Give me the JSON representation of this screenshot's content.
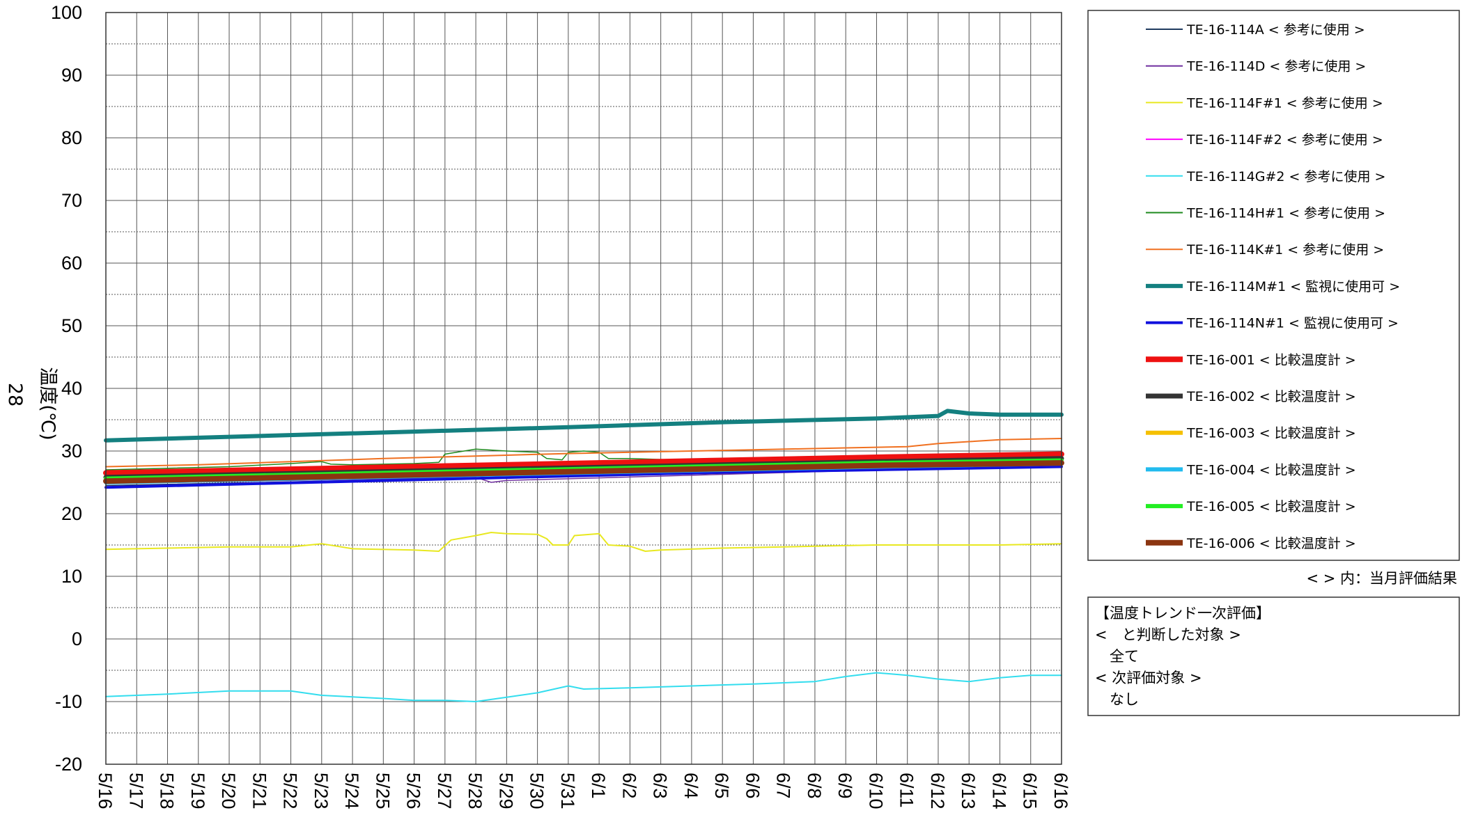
{
  "chart_data": {
    "type": "line",
    "ylabel": "温度(℃)",
    "yticks": [
      100,
      90,
      80,
      70,
      60,
      50,
      40,
      30,
      20,
      10,
      0,
      -10,
      -20
    ],
    "ylim": [
      -20,
      100
    ],
    "xticks": [
      "5/16",
      "5/17",
      "5/18",
      "5/19",
      "5/20",
      "5/21",
      "5/22",
      "5/23",
      "5/24",
      "5/25",
      "5/26",
      "5/27",
      "5/28",
      "5/29",
      "5/30",
      "5/31",
      "6/1",
      "6/2",
      "6/3",
      "6/4",
      "6/5",
      "6/6",
      "6/7",
      "6/8",
      "6/9",
      "6/10",
      "6/11",
      "6/12",
      "6/13",
      "6/14",
      "6/15",
      "6/16"
    ],
    "grid": true,
    "legend_position": "right",
    "series": [
      {
        "name": "TE-16-114A < 参考に使用 >",
        "color": "#1f3a5f",
        "width": 1.5,
        "values": [
          [
            0,
            24.5
          ],
          [
            31,
            27.5
          ]
        ]
      },
      {
        "name": "TE-16-114D < 参考に使用 >",
        "color": "#7030a0",
        "width": 1.5,
        "values": [
          [
            0,
            24.8
          ],
          [
            12,
            25.8
          ],
          [
            12.5,
            25.0
          ],
          [
            13,
            25.3
          ],
          [
            31,
            27.8
          ]
        ]
      },
      {
        "name": "TE-16-114F#1 < 参考に使用 >",
        "color": "#e8e820",
        "width": 2,
        "values": [
          [
            0,
            14.3
          ],
          [
            2,
            14.5
          ],
          [
            4,
            14.7
          ],
          [
            6,
            14.7
          ],
          [
            7,
            15.2
          ],
          [
            8,
            14.4
          ],
          [
            10,
            14.2
          ],
          [
            10.8,
            14.0
          ],
          [
            11.2,
            15.8
          ],
          [
            12,
            16.5
          ],
          [
            12.5,
            17.0
          ],
          [
            13,
            16.8
          ],
          [
            14,
            16.7
          ],
          [
            14.3,
            16.0
          ],
          [
            14.5,
            15.0
          ],
          [
            15,
            15.0
          ],
          [
            15.2,
            16.5
          ],
          [
            16,
            16.8
          ],
          [
            16.3,
            15.0
          ],
          [
            17,
            14.8
          ],
          [
            17.5,
            14.0
          ],
          [
            18,
            14.2
          ],
          [
            20,
            14.5
          ],
          [
            23,
            14.8
          ],
          [
            25,
            15.0
          ],
          [
            27,
            15.0
          ],
          [
            29,
            15.0
          ],
          [
            31,
            15.2
          ]
        ]
      },
      {
        "name": "TE-16-114F#2 < 参考に使用 >",
        "color": "#ff00ff",
        "width": 1.5,
        "values": [
          [
            0,
            25.5
          ],
          [
            31,
            28.5
          ]
        ]
      },
      {
        "name": "TE-16-114G#2 < 参考に使用 >",
        "color": "#33ddee",
        "width": 2,
        "values": [
          [
            0,
            -9.2
          ],
          [
            2,
            -8.8
          ],
          [
            4,
            -8.3
          ],
          [
            6,
            -8.3
          ],
          [
            7,
            -9.0
          ],
          [
            9,
            -9.5
          ],
          [
            10,
            -9.8
          ],
          [
            11,
            -9.8
          ],
          [
            12,
            -10.0
          ],
          [
            13,
            -9.3
          ],
          [
            14,
            -8.6
          ],
          [
            15,
            -7.5
          ],
          [
            15.5,
            -8.0
          ],
          [
            17,
            -7.8
          ],
          [
            19,
            -7.5
          ],
          [
            21,
            -7.2
          ],
          [
            23,
            -6.8
          ],
          [
            24,
            -6.0
          ],
          [
            25,
            -5.4
          ],
          [
            26,
            -5.8
          ],
          [
            27,
            -6.4
          ],
          [
            28,
            -6.8
          ],
          [
            29,
            -6.2
          ],
          [
            30,
            -5.8
          ],
          [
            31,
            -5.8
          ]
        ]
      },
      {
        "name": "TE-16-114H#1 < 参考に使用 >",
        "color": "#1e8a1e",
        "width": 1.5,
        "values": [
          [
            0,
            27.0
          ],
          [
            4,
            27.5
          ],
          [
            6,
            28.0
          ],
          [
            7,
            28.3
          ],
          [
            7.3,
            27.9
          ],
          [
            8,
            27.8
          ],
          [
            10,
            28.0
          ],
          [
            10.8,
            28.2
          ],
          [
            11,
            29.5
          ],
          [
            12,
            30.3
          ],
          [
            13,
            30.0
          ],
          [
            14,
            29.8
          ],
          [
            14.3,
            28.8
          ],
          [
            14.8,
            28.6
          ],
          [
            15,
            29.8
          ],
          [
            15.5,
            30.0
          ],
          [
            16,
            29.8
          ],
          [
            16.3,
            28.8
          ],
          [
            17,
            28.8
          ],
          [
            19,
            28.5
          ],
          [
            21,
            28.6
          ],
          [
            23,
            28.7
          ],
          [
            25,
            28.8
          ],
          [
            27,
            29.0
          ],
          [
            29,
            29.0
          ],
          [
            31,
            29.3
          ]
        ]
      },
      {
        "name": "TE-16-114K#1 < 参考に使用 >",
        "color": "#f07020",
        "width": 2,
        "values": [
          [
            0,
            27.5
          ],
          [
            3,
            27.8
          ],
          [
            6,
            28.3
          ],
          [
            9,
            28.8
          ],
          [
            12,
            29.2
          ],
          [
            15,
            29.6
          ],
          [
            18,
            29.9
          ],
          [
            21,
            30.2
          ],
          [
            24,
            30.5
          ],
          [
            26,
            30.7
          ],
          [
            27,
            31.2
          ],
          [
            28,
            31.5
          ],
          [
            29,
            31.8
          ],
          [
            31,
            32.0
          ]
        ]
      },
      {
        "name": "TE-16-114M#1 < 監視に使用可 >",
        "color": "#148080",
        "width": 6,
        "values": [
          [
            0,
            31.7
          ],
          [
            5,
            32.4
          ],
          [
            10,
            33.1
          ],
          [
            15,
            33.8
          ],
          [
            20,
            34.6
          ],
          [
            25,
            35.2
          ],
          [
            27,
            35.6
          ],
          [
            27.3,
            36.4
          ],
          [
            28,
            36.0
          ],
          [
            29,
            35.8
          ],
          [
            31,
            35.8
          ]
        ]
      },
      {
        "name": "TE-16-114N#1 < 監視に使用可 >",
        "color": "#1010dd",
        "width": 4,
        "values": [
          [
            0,
            24.2
          ],
          [
            5,
            24.8
          ],
          [
            10,
            25.4
          ],
          [
            15,
            26.0
          ],
          [
            20,
            26.6
          ],
          [
            25,
            27.0
          ],
          [
            31,
            27.5
          ]
        ]
      },
      {
        "name": "TE-16-001 < 比較温度計 >",
        "color": "#ee1111",
        "width": 8,
        "values": [
          [
            0,
            26.5
          ],
          [
            5,
            27.0
          ],
          [
            10,
            27.5
          ],
          [
            15,
            28.0
          ],
          [
            20,
            28.5
          ],
          [
            25,
            29.0
          ],
          [
            31,
            29.5
          ]
        ]
      },
      {
        "name": "TE-16-002 < 比較温度計 >",
        "color": "#333333",
        "width": 7,
        "values": [
          [
            0,
            25.8
          ],
          [
            5,
            26.3
          ],
          [
            10,
            26.8
          ],
          [
            15,
            27.3
          ],
          [
            20,
            27.8
          ],
          [
            25,
            28.3
          ],
          [
            31,
            28.8
          ]
        ]
      },
      {
        "name": "TE-16-003 < 比較温度計 >",
        "color": "#f5c000",
        "width": 6,
        "values": [
          [
            0,
            25.3
          ],
          [
            5,
            25.8
          ],
          [
            10,
            26.3
          ],
          [
            15,
            26.8
          ],
          [
            20,
            27.3
          ],
          [
            25,
            27.8
          ],
          [
            31,
            28.2
          ]
        ]
      },
      {
        "name": "TE-16-004 < 比較温度計 >",
        "color": "#22bbee",
        "width": 6,
        "values": [
          [
            0,
            25.0
          ],
          [
            5,
            25.5
          ],
          [
            10,
            26.0
          ],
          [
            15,
            26.5
          ],
          [
            20,
            27.0
          ],
          [
            25,
            27.5
          ],
          [
            31,
            28.0
          ]
        ]
      },
      {
        "name": "TE-16-005 < 比較温度計 >",
        "color": "#22ee22",
        "width": 6,
        "values": [
          [
            0,
            25.6
          ],
          [
            5,
            26.1
          ],
          [
            10,
            26.6
          ],
          [
            15,
            27.1
          ],
          [
            20,
            27.6
          ],
          [
            25,
            28.1
          ],
          [
            31,
            28.5
          ]
        ]
      },
      {
        "name": "TE-16-006 < 比較温度計 >",
        "color": "#8b3510",
        "width": 8,
        "values": [
          [
            0,
            25.2
          ],
          [
            5,
            25.7
          ],
          [
            10,
            26.2
          ],
          [
            15,
            26.7
          ],
          [
            20,
            27.2
          ],
          [
            25,
            27.7
          ],
          [
            31,
            28.1
          ]
        ]
      }
    ],
    "legend_note": "< > 内：当月評価結果",
    "evaluation_box": {
      "lines": [
        "【温度トレンド一次評価】",
        "<　と判断した対象 >",
        "　全て",
        "< 次評価対象 >",
        "　なし"
      ]
    }
  },
  "page_marker": "28"
}
